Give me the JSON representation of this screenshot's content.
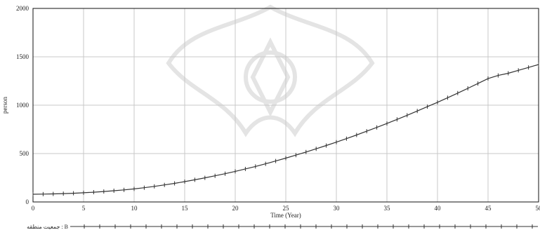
{
  "chart_data": {
    "type": "line",
    "xlabel": "Time (Year)",
    "ylabel": "person",
    "xlim": [
      0,
      50
    ],
    "ylim": [
      0,
      2000
    ],
    "x_ticks": [
      "0",
      "5",
      "10",
      "15",
      "20",
      "25",
      "30",
      "35",
      "40",
      "45",
      "50"
    ],
    "y_ticks": [
      "0",
      "500",
      "1000",
      "1500",
      "2000"
    ],
    "grid": true,
    "legend_position": "bottom",
    "series": [
      {
        "name": "ﺟﻤﻌﯿﺖ ﻣﻨﻄﻘﻪ : B",
        "color": "#333333",
        "marker": "tick",
        "x": [
          0,
          1,
          2,
          3,
          4,
          5,
          6,
          7,
          8,
          9,
          10,
          11,
          12,
          13,
          14,
          15,
          16,
          17,
          18,
          19,
          20,
          21,
          22,
          23,
          24,
          25,
          26,
          27,
          28,
          29,
          30,
          31,
          32,
          33,
          34,
          35,
          36,
          37,
          38,
          39,
          40,
          41,
          42,
          43,
          44,
          45,
          46,
          47,
          48,
          49,
          50
        ],
        "values": [
          80,
          81,
          83,
          86,
          90,
          95,
          101,
          108,
          116,
          125,
          135,
          147,
          161,
          176,
          192,
          210,
          229,
          249,
          270,
          292,
          316,
          341,
          367,
          394,
          423,
          453,
          484,
          516,
          549,
          583,
          618,
          654,
          692,
          731,
          770,
          811,
          853,
          896,
          940,
          985,
          1030,
          1077,
          1125,
          1174,
          1224,
          1275,
          1307,
          1330,
          1360,
          1390,
          1420
        ]
      }
    ]
  }
}
